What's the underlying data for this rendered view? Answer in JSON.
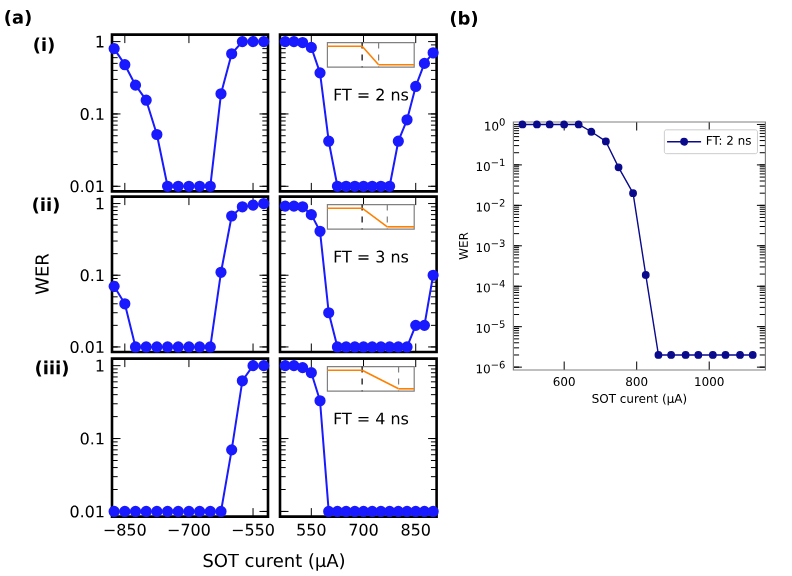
{
  "chart_data": [
    {
      "type": "line",
      "x": [
        -875,
        -850,
        -825,
        -800,
        -775,
        -750,
        -725,
        -700,
        -675,
        -650,
        -625,
        -600,
        -575,
        -550,
        -525
      ],
      "series": [
        {
          "color": "#1a1aff",
          "values": [
            0.8,
            0.48,
            0.25,
            0.155,
            0.052,
            0.01,
            0.01,
            0.01,
            0.01,
            0.01,
            0.19,
            0.68,
            1,
            1,
            1
          ]
        }
      ],
      "xlim": [
        -880,
        -515
      ],
      "ylim": [
        0.0085,
        1.25
      ],
      "xticks": [
        -850,
        -700,
        -550
      ],
      "yticks": [
        0.01,
        0.1,
        1
      ],
      "log": true,
      "marker": "circle",
      "line_style": "solid",
      "tick_labels": "y",
      "annotations": [
        "(a)",
        "(i)"
      ]
    },
    {
      "type": "line",
      "x": [
        475,
        500,
        525,
        550,
        575,
        600,
        625,
        650,
        675,
        700,
        725,
        750,
        775,
        800,
        825,
        850,
        875,
        900
      ],
      "series": [
        {
          "color": "#1a1aff",
          "values": [
            1,
            1,
            0.97,
            0.83,
            0.37,
            0.042,
            0.01,
            0.01,
            0.01,
            0.01,
            0.01,
            0.01,
            0.01,
            0.042,
            0.083,
            0.24,
            0.5,
            0.7
          ]
        }
      ],
      "xlim": [
        460,
        910
      ],
      "ylim": [
        0.0085,
        1.25
      ],
      "xticks": [
        550,
        700,
        850
      ],
      "yticks": [
        0.01,
        0.1,
        1
      ],
      "log": true,
      "marker": "circle",
      "line_style": "solid",
      "tick_labels": false,
      "annotations": [
        "FT = 2 ns"
      ]
    },
    {
      "type": "line",
      "x": [
        -875,
        -850,
        -825,
        -800,
        -775,
        -750,
        -725,
        -700,
        -675,
        -650,
        -625,
        -600,
        -575,
        -550,
        -525
      ],
      "series": [
        {
          "color": "#1a1aff",
          "values": [
            0.07,
            0.04,
            0.01,
            0.01,
            0.01,
            0.01,
            0.01,
            0.01,
            0.01,
            0.01,
            0.11,
            0.67,
            0.9,
            0.95,
            1
          ]
        }
      ],
      "xlim": [
        -880,
        -515
      ],
      "ylim": [
        0.0085,
        1.25
      ],
      "xticks": [
        -850,
        -700,
        -550
      ],
      "yticks": [
        0.01,
        0.1,
        1
      ],
      "log": true,
      "marker": "circle",
      "line_style": "solid",
      "tick_labels": "y",
      "ylabel": "WER",
      "annotations": [
        "(ii)"
      ]
    },
    {
      "type": "line",
      "x": [
        475,
        500,
        525,
        550,
        575,
        600,
        625,
        650,
        675,
        700,
        725,
        750,
        775,
        800,
        825,
        850,
        875,
        900
      ],
      "series": [
        {
          "color": "#1a1aff",
          "values": [
            0.92,
            0.92,
            0.9,
            0.7,
            0.41,
            0.03,
            0.01,
            0.01,
            0.01,
            0.01,
            0.01,
            0.01,
            0.01,
            0.01,
            0.01,
            0.02,
            0.02,
            0.1
          ]
        }
      ],
      "xlim": [
        460,
        910
      ],
      "ylim": [
        0.0085,
        1.25
      ],
      "xticks": [
        550,
        700,
        850
      ],
      "yticks": [
        0.01,
        0.1,
        1
      ],
      "log": true,
      "marker": "circle",
      "line_style": "solid",
      "tick_labels": false,
      "annotations": [
        "FT = 3 ns"
      ]
    },
    {
      "type": "line",
      "x": [
        -875,
        -850,
        -825,
        -800,
        -775,
        -750,
        -725,
        -700,
        -675,
        -650,
        -625,
        -600,
        -575,
        -550,
        -525
      ],
      "series": [
        {
          "color": "#1a1aff",
          "values": [
            0.01,
            0.01,
            0.01,
            0.01,
            0.01,
            0.01,
            0.01,
            0.01,
            0.01,
            0.01,
            0.01,
            0.07,
            0.62,
            1,
            1
          ]
        }
      ],
      "xlim": [
        -880,
        -515
      ],
      "ylim": [
        0.0085,
        1.25
      ],
      "xticks": [
        {
          "value": -850,
          "label": "−850"
        },
        {
          "value": -700,
          "label": "−700"
        },
        {
          "value": -550,
          "label": "−550"
        }
      ],
      "yticks": [
        0.01,
        0.1,
        1
      ],
      "log": true,
      "marker": "circle",
      "line_style": "solid",
      "xlabel": "SOT curent (µA)",
      "annotations": [
        "(iii)"
      ]
    },
    {
      "type": "line",
      "x": [
        475,
        500,
        525,
        550,
        575,
        600,
        625,
        650,
        675,
        700,
        725,
        750,
        775,
        800,
        825,
        850,
        875,
        900
      ],
      "series": [
        {
          "color": "#1a1aff",
          "values": [
            1,
            1,
            0.94,
            0.8,
            0.33,
            0.01,
            0.01,
            0.01,
            0.01,
            0.01,
            0.01,
            0.01,
            0.01,
            0.01,
            0.01,
            0.01,
            0.01,
            0.01
          ]
        }
      ],
      "xlim": [
        460,
        910
      ],
      "ylim": [
        0.0085,
        1.25
      ],
      "xticks": [
        550,
        700,
        850
      ],
      "yticks": [
        0.01,
        0.1,
        1
      ],
      "log": true,
      "marker": "circle",
      "line_style": "solid",
      "tick_labels": "x",
      "annotations": [
        "FT = 4 ns"
      ]
    },
    {
      "type": "line",
      "x": [
        485,
        525,
        560,
        600,
        640,
        675,
        715,
        750,
        790,
        825,
        860,
        895,
        935,
        970,
        1010,
        1045,
        1085,
        1120
      ],
      "series": [
        {
          "name": "FT: 2 ns",
          "color": "#0a0a8c",
          "values": [
            1,
            1,
            1,
            1,
            1,
            0.66,
            0.38,
            0.087,
            0.02,
            0.00019,
            2e-06,
            2e-06,
            2e-06,
            2e-06,
            2e-06,
            2e-06,
            2e-06,
            2e-06
          ]
        }
      ],
      "xlim": [
        460,
        1155
      ],
      "ylim": [
        8.5e-07,
        1.15
      ],
      "xticks": [
        600,
        800,
        1000
      ],
      "yticks": [
        {
          "value": 1e-06,
          "label": "10$^{−6}$"
        },
        {
          "value": 1e-05,
          "label": "10$^{−5}$"
        },
        {
          "value": 0.0001,
          "label": "10$^{−4}$"
        },
        {
          "value": 0.001,
          "label": "10$^{−3}$"
        },
        {
          "value": 0.01,
          "label": "10$^{−2}$"
        },
        {
          "value": 0.1,
          "label": "10$^{−1}$"
        },
        {
          "value": 1,
          "label": "10$^{0}$"
        }
      ],
      "log": true,
      "marker": "circle",
      "line_style": "solid",
      "legend": "top right",
      "xlabel": "SOT curent (µA)",
      "ylabel": "WER",
      "annotations": [
        "(b)"
      ]
    }
  ]
}
